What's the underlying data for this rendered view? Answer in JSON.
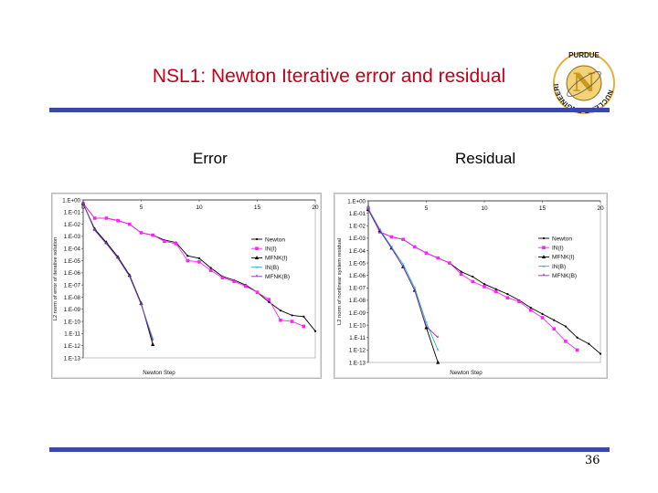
{
  "slide": {
    "title": "NSL1: Newton Iterative error and residual",
    "left_label": "Error",
    "right_label": "Residual",
    "page_number": "36",
    "logo": {
      "icon": "purdue-nuclear-engineering-logo",
      "top_text": "PURDUE",
      "ring_text": "NUCLEAR ENGINEERING",
      "letter": "N"
    },
    "colors": {
      "title": "#c0001a",
      "rule": "#3a48a6"
    }
  },
  "chart_data": [
    {
      "type": "line",
      "ylabel": "L2 norm of error of iterative solution",
      "xlabel": "Newton Step",
      "xlim": [
        0,
        20
      ],
      "x_ticks": [
        "0",
        "5",
        "10",
        "15",
        "20"
      ],
      "y_scale": "log",
      "y_ticks": [
        "1.E+00",
        "1.E-01",
        "1.E-02",
        "1.E-03",
        "1.E-04",
        "1.E-05",
        "1.E-06",
        "1.E-07",
        "1.E-08",
        "1.E-09",
        "1.E-10",
        "1.E-11",
        "1.E-12",
        "1.E-13"
      ],
      "legend_position": "right",
      "series": [
        {
          "name": "Newton",
          "color": "#000000",
          "x": [
            0,
            1,
            2,
            3,
            4,
            5,
            6,
            7,
            8,
            9,
            10,
            11,
            12,
            13,
            14,
            15,
            16,
            17,
            18,
            19,
            20
          ],
          "y_exp": [
            -0.3,
            -1.5,
            -1.5,
            -1.7,
            -2.0,
            -2.7,
            -2.9,
            -3.3,
            -3.5,
            -4.6,
            -4.8,
            -5.6,
            -6.3,
            -6.6,
            -7.0,
            -7.6,
            -8.4,
            -9.1,
            -9.5,
            -9.6,
            -10.8
          ]
        },
        {
          "name": "IN(I)",
          "color": "#ff22ff",
          "x": [
            0,
            1,
            2,
            3,
            4,
            5,
            6,
            7,
            8,
            9,
            10,
            11,
            12,
            13,
            14,
            15,
            16,
            17,
            18,
            19
          ],
          "y_exp": [
            -0.3,
            -1.5,
            -1.5,
            -1.7,
            -2.0,
            -2.7,
            -2.9,
            -3.4,
            -3.6,
            -5.0,
            -5.1,
            -5.8,
            -6.4,
            -6.7,
            -7.1,
            -7.6,
            -8.2,
            -9.9,
            -10.0,
            -10.4
          ]
        },
        {
          "name": "MFNK(I)",
          "color": "#000000",
          "x": [
            0,
            1,
            2,
            3,
            4,
            5,
            6
          ],
          "y_exp": [
            -0.3,
            -2.4,
            -3.5,
            -4.7,
            -6.2,
            -8.5,
            -11.9
          ]
        },
        {
          "name": "IN(B)",
          "color": "#29b8c8",
          "x": [
            0,
            1,
            2,
            3,
            4,
            5,
            6
          ],
          "y_exp": [
            -0.3,
            -2.5,
            -3.6,
            -4.8,
            -6.3,
            -8.6,
            -11.4
          ]
        },
        {
          "name": "MFNK(B)",
          "color": "#8a2ab0",
          "x": [
            0,
            1,
            2,
            3,
            4,
            5,
            6
          ],
          "y_exp": [
            -0.3,
            -2.5,
            -3.6,
            -4.8,
            -6.3,
            -8.6,
            -11.6
          ]
        }
      ]
    },
    {
      "type": "line",
      "ylabel": "L2 norm of nonlinear system residual",
      "xlabel": "Newton Step",
      "xlim": [
        0,
        20
      ],
      "x_ticks": [
        "0",
        "5",
        "10",
        "15",
        "20"
      ],
      "y_scale": "log",
      "y_ticks": [
        "1.E+00",
        "1.E-01",
        "1.E-02",
        "1.E-03",
        "1.E-04",
        "1.E-05",
        "1.E-06",
        "1.E-07",
        "1.E-08",
        "1.E-09",
        "1.E-10",
        "1.E-11",
        "1.E-12",
        "1.E-13"
      ],
      "legend_position": "right",
      "series": [
        {
          "name": "Newton",
          "color": "#000000",
          "x": [
            0,
            1,
            2,
            3,
            4,
            5,
            6,
            7,
            8,
            9,
            10,
            11,
            12,
            13,
            14,
            15,
            16,
            17,
            18,
            19,
            20
          ],
          "y_exp": [
            -0.7,
            -2.5,
            -2.9,
            -3.1,
            -3.7,
            -4.2,
            -4.6,
            -5.0,
            -5.7,
            -6.1,
            -6.7,
            -7.1,
            -7.5,
            -8.0,
            -8.6,
            -9.1,
            -9.6,
            -10.1,
            -11.0,
            -11.5,
            -12.3
          ]
        },
        {
          "name": "IN(I)",
          "color": "#ff22ff",
          "x": [
            0,
            1,
            2,
            3,
            4,
            5,
            6,
            7,
            8,
            9,
            10,
            11,
            12,
            13,
            14,
            15,
            16,
            17,
            18
          ],
          "y_exp": [
            -0.7,
            -2.5,
            -2.9,
            -3.1,
            -3.7,
            -4.2,
            -4.6,
            -5.0,
            -5.9,
            -6.5,
            -6.9,
            -7.3,
            -7.8,
            -8.1,
            -8.8,
            -9.4,
            -10.3,
            -11.3,
            -12.0
          ]
        },
        {
          "name": "MFNK(I)",
          "color": "#000000",
          "x": [
            0,
            1,
            2,
            3,
            4,
            5,
            6
          ],
          "y_exp": [
            -0.7,
            -2.4,
            -3.8,
            -5.3,
            -7.2,
            -10.2,
            -13.0
          ]
        },
        {
          "name": "IN(B)",
          "color": "#29b8c8",
          "x": [
            0,
            1,
            2,
            3,
            4,
            5,
            6
          ],
          "y_exp": [
            -0.6,
            -2.3,
            -3.7,
            -5.1,
            -7.0,
            -9.8,
            -12.0
          ]
        },
        {
          "name": "MFNK(B)",
          "color": "#8a2ab0",
          "x": [
            0,
            1,
            2,
            3,
            4,
            5,
            6
          ],
          "y_exp": [
            -0.7,
            -2.4,
            -3.8,
            -5.3,
            -7.2,
            -10.1,
            -11.0
          ]
        }
      ]
    }
  ]
}
